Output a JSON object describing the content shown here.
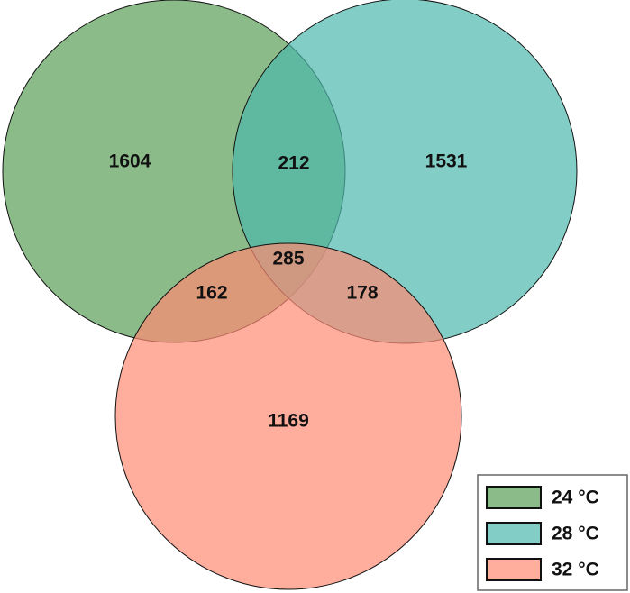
{
  "chart_data": {
    "type": "venn",
    "sets": [
      {
        "name": "24 °C",
        "color": "#5a9e55"
      },
      {
        "name": "28 °C",
        "color": "#4db8ac"
      },
      {
        "name": "32 °C",
        "color": "#ff8a73"
      }
    ],
    "regions": [
      {
        "sets": [
          0
        ],
        "value": 1604
      },
      {
        "sets": [
          0,
          1
        ],
        "value": 212
      },
      {
        "sets": [
          1
        ],
        "value": 1531
      },
      {
        "sets": [
          0,
          1,
          2
        ],
        "value": 285
      },
      {
        "sets": [
          0,
          2
        ],
        "value": 162
      },
      {
        "sets": [
          1,
          2
        ],
        "value": 178
      },
      {
        "sets": [
          2
        ],
        "value": 1169
      }
    ]
  }
}
